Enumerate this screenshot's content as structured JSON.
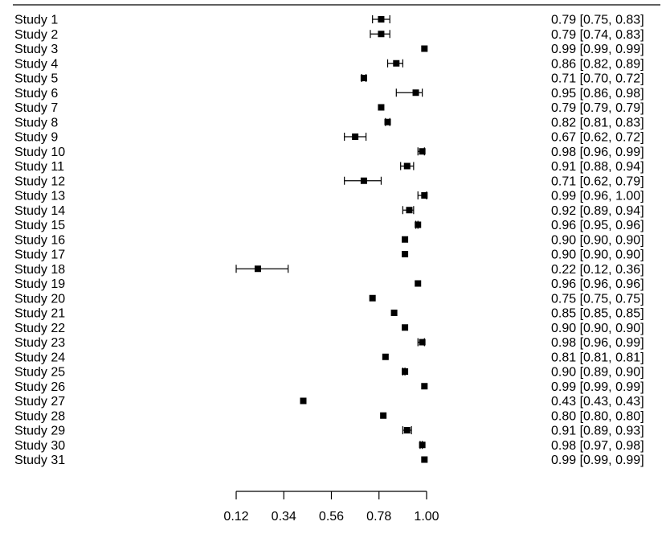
{
  "chart_data": {
    "type": "forest",
    "title": "",
    "xlabel": "",
    "ylabel": "",
    "xlim": [
      0.12,
      1.0
    ],
    "xticks": [
      {
        "value": 0.12,
        "label": "0.12"
      },
      {
        "value": 0.34,
        "label": "0.34"
      },
      {
        "value": 0.56,
        "label": "0.56"
      },
      {
        "value": 0.78,
        "label": "0.78"
      },
      {
        "value": 1.0,
        "label": "1.00"
      }
    ],
    "studies": [
      {
        "label": "Study 1",
        "est": 0.79,
        "lo": 0.75,
        "hi": 0.83,
        "ci_text": "0.79 [0.75, 0.83]"
      },
      {
        "label": "Study 2",
        "est": 0.79,
        "lo": 0.74,
        "hi": 0.83,
        "ci_text": "0.79 [0.74, 0.83]"
      },
      {
        "label": "Study 3",
        "est": 0.99,
        "lo": 0.99,
        "hi": 0.99,
        "ci_text": "0.99 [0.99, 0.99]"
      },
      {
        "label": "Study 4",
        "est": 0.86,
        "lo": 0.82,
        "hi": 0.89,
        "ci_text": "0.86 [0.82, 0.89]"
      },
      {
        "label": "Study 5",
        "est": 0.71,
        "lo": 0.7,
        "hi": 0.72,
        "ci_text": "0.71 [0.70, 0.72]"
      },
      {
        "label": "Study 6",
        "est": 0.95,
        "lo": 0.86,
        "hi": 0.98,
        "ci_text": "0.95 [0.86, 0.98]"
      },
      {
        "label": "Study 7",
        "est": 0.79,
        "lo": 0.79,
        "hi": 0.79,
        "ci_text": "0.79 [0.79, 0.79]"
      },
      {
        "label": "Study 8",
        "est": 0.82,
        "lo": 0.81,
        "hi": 0.83,
        "ci_text": "0.82 [0.81, 0.83]"
      },
      {
        "label": "Study 9",
        "est": 0.67,
        "lo": 0.62,
        "hi": 0.72,
        "ci_text": "0.67 [0.62, 0.72]"
      },
      {
        "label": "Study 10",
        "est": 0.98,
        "lo": 0.96,
        "hi": 0.99,
        "ci_text": "0.98 [0.96, 0.99]"
      },
      {
        "label": "Study 11",
        "est": 0.91,
        "lo": 0.88,
        "hi": 0.94,
        "ci_text": "0.91 [0.88, 0.94]"
      },
      {
        "label": "Study 12",
        "est": 0.71,
        "lo": 0.62,
        "hi": 0.79,
        "ci_text": "0.71 [0.62, 0.79]"
      },
      {
        "label": "Study 13",
        "est": 0.99,
        "lo": 0.96,
        "hi": 1.0,
        "ci_text": "0.99 [0.96, 1.00]"
      },
      {
        "label": "Study 14",
        "est": 0.92,
        "lo": 0.89,
        "hi": 0.94,
        "ci_text": "0.92 [0.89, 0.94]"
      },
      {
        "label": "Study 15",
        "est": 0.96,
        "lo": 0.95,
        "hi": 0.96,
        "ci_text": "0.96 [0.95, 0.96]"
      },
      {
        "label": "Study 16",
        "est": 0.9,
        "lo": 0.9,
        "hi": 0.9,
        "ci_text": "0.90 [0.90, 0.90]"
      },
      {
        "label": "Study 17",
        "est": 0.9,
        "lo": 0.9,
        "hi": 0.9,
        "ci_text": "0.90 [0.90, 0.90]"
      },
      {
        "label": "Study 18",
        "est": 0.22,
        "lo": 0.12,
        "hi": 0.36,
        "ci_text": "0.22 [0.12, 0.36]"
      },
      {
        "label": "Study 19",
        "est": 0.96,
        "lo": 0.96,
        "hi": 0.96,
        "ci_text": "0.96 [0.96, 0.96]"
      },
      {
        "label": "Study 20",
        "est": 0.75,
        "lo": 0.75,
        "hi": 0.75,
        "ci_text": "0.75 [0.75, 0.75]"
      },
      {
        "label": "Study 21",
        "est": 0.85,
        "lo": 0.85,
        "hi": 0.85,
        "ci_text": "0.85 [0.85, 0.85]"
      },
      {
        "label": "Study 22",
        "est": 0.9,
        "lo": 0.9,
        "hi": 0.9,
        "ci_text": "0.90 [0.90, 0.90]"
      },
      {
        "label": "Study 23",
        "est": 0.98,
        "lo": 0.96,
        "hi": 0.99,
        "ci_text": "0.98 [0.96, 0.99]"
      },
      {
        "label": "Study 24",
        "est": 0.81,
        "lo": 0.81,
        "hi": 0.81,
        "ci_text": "0.81 [0.81, 0.81]"
      },
      {
        "label": "Study 25",
        "est": 0.9,
        "lo": 0.89,
        "hi": 0.9,
        "ci_text": "0.90 [0.89, 0.90]"
      },
      {
        "label": "Study 26",
        "est": 0.99,
        "lo": 0.99,
        "hi": 0.99,
        "ci_text": "0.99 [0.99, 0.99]"
      },
      {
        "label": "Study 27",
        "est": 0.43,
        "lo": 0.43,
        "hi": 0.43,
        "ci_text": "0.43 [0.43, 0.43]"
      },
      {
        "label": "Study 28",
        "est": 0.8,
        "lo": 0.8,
        "hi": 0.8,
        "ci_text": "0.80 [0.80, 0.80]"
      },
      {
        "label": "Study 29",
        "est": 0.91,
        "lo": 0.89,
        "hi": 0.93,
        "ci_text": "0.91 [0.89, 0.93]"
      },
      {
        "label": "Study 30",
        "est": 0.98,
        "lo": 0.97,
        "hi": 0.98,
        "ci_text": "0.98 [0.97, 0.98]"
      },
      {
        "label": "Study 31",
        "est": 0.99,
        "lo": 0.99,
        "hi": 0.99,
        "ci_text": "0.99 [0.99, 0.99]"
      }
    ],
    "colors": {
      "marks": "#000000",
      "background": "#ffffff"
    }
  }
}
